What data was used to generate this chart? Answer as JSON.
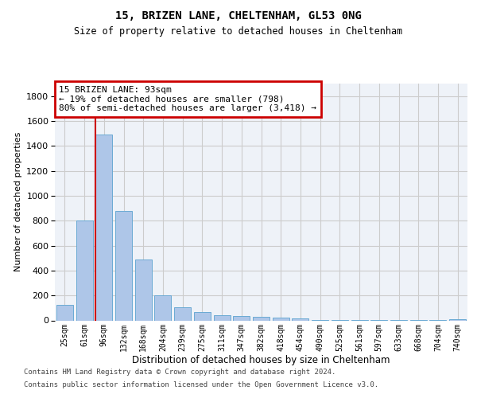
{
  "title1": "15, BRIZEN LANE, CHELTENHAM, GL53 0NG",
  "title2": "Size of property relative to detached houses in Cheltenham",
  "xlabel": "Distribution of detached houses by size in Cheltenham",
  "ylabel": "Number of detached properties",
  "categories": [
    "25sqm",
    "61sqm",
    "96sqm",
    "132sqm",
    "168sqm",
    "204sqm",
    "239sqm",
    "275sqm",
    "311sqm",
    "347sqm",
    "382sqm",
    "418sqm",
    "454sqm",
    "490sqm",
    "525sqm",
    "561sqm",
    "597sqm",
    "633sqm",
    "668sqm",
    "704sqm",
    "740sqm"
  ],
  "values": [
    125,
    800,
    1490,
    880,
    490,
    200,
    105,
    65,
    40,
    35,
    30,
    20,
    15,
    5,
    2,
    1,
    1,
    1,
    1,
    1,
    10
  ],
  "bar_color": "#aec6e8",
  "bar_edge_color": "#6aaad4",
  "grid_color": "#cccccc",
  "background_color": "#eef2f8",
  "vline_x_index": 2,
  "vline_color": "#cc0000",
  "annotation_text": "15 BRIZEN LANE: 93sqm\n← 19% of detached houses are smaller (798)\n80% of semi-detached houses are larger (3,418) →",
  "annotation_box_color": "#cc0000",
  "ylim": [
    0,
    1900
  ],
  "yticks": [
    0,
    200,
    400,
    600,
    800,
    1000,
    1200,
    1400,
    1600,
    1800
  ],
  "footer1": "Contains HM Land Registry data © Crown copyright and database right 2024.",
  "footer2": "Contains public sector information licensed under the Open Government Licence v3.0."
}
